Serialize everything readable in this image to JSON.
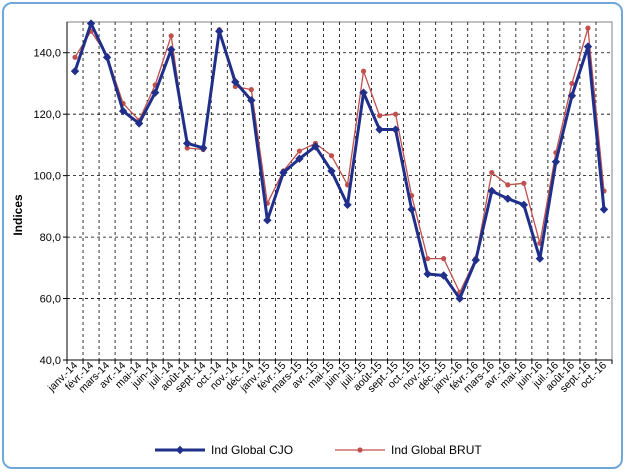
{
  "chart_data": {
    "type": "line",
    "title": "",
    "xlabel": "",
    "ylabel": "Indices",
    "ylim": [
      40,
      150
    ],
    "yticks": [
      40,
      60,
      80,
      100,
      120,
      140
    ],
    "ytick_labels": [
      "40,0",
      "60,0",
      "80,0",
      "100,0",
      "120,0",
      "140,0"
    ],
    "grid": true,
    "legend_position": "bottom",
    "categories": [
      "janv.-14",
      "févr.-14",
      "mars-14",
      "avr.-14",
      "mai-14",
      "juin-14",
      "juil.-14",
      "août-14",
      "sept.-14",
      "oct.-14",
      "nov.-14",
      "déc.-14",
      "janv.-15",
      "févr.-15",
      "mars-15",
      "avr.-15",
      "mai-15",
      "juin-15",
      "juil.-15",
      "août-15",
      "sept.-15",
      "oct.-15",
      "nov.-15",
      "déc.-15",
      "janv.-16",
      "févr.-16",
      "mars-16",
      "avr.-16",
      "mai-16",
      "juin-16",
      "juil.-16",
      "août-16",
      "sept.-16",
      "oct.-16"
    ],
    "series": [
      {
        "name": "Ind Global CJO",
        "color": "#1f2f8a",
        "marker": "diamond",
        "values": [
          134,
          149.5,
          138.5,
          121,
          117,
          127,
          141,
          110.5,
          109,
          147,
          130.5,
          124.5,
          85.5,
          101,
          105.5,
          109.5,
          101.5,
          90.5,
          127,
          115,
          115,
          89,
          68,
          67.5,
          60,
          72.5,
          95,
          92.5,
          90.5,
          73,
          104.5,
          126,
          142,
          89
        ]
      },
      {
        "name": "Ind Global BRUT",
        "color": "#c0504d",
        "marker": "circle",
        "values": [
          138.5,
          147,
          139,
          123.5,
          118,
          129.5,
          145.5,
          109,
          108.5,
          147.5,
          129,
          128,
          91,
          101.5,
          108,
          110.5,
          106.5,
          97,
          134,
          119.5,
          120,
          93.5,
          73,
          73,
          62,
          73,
          101,
          97,
          97.5,
          78,
          107.5,
          130,
          148,
          95
        ]
      }
    ]
  }
}
